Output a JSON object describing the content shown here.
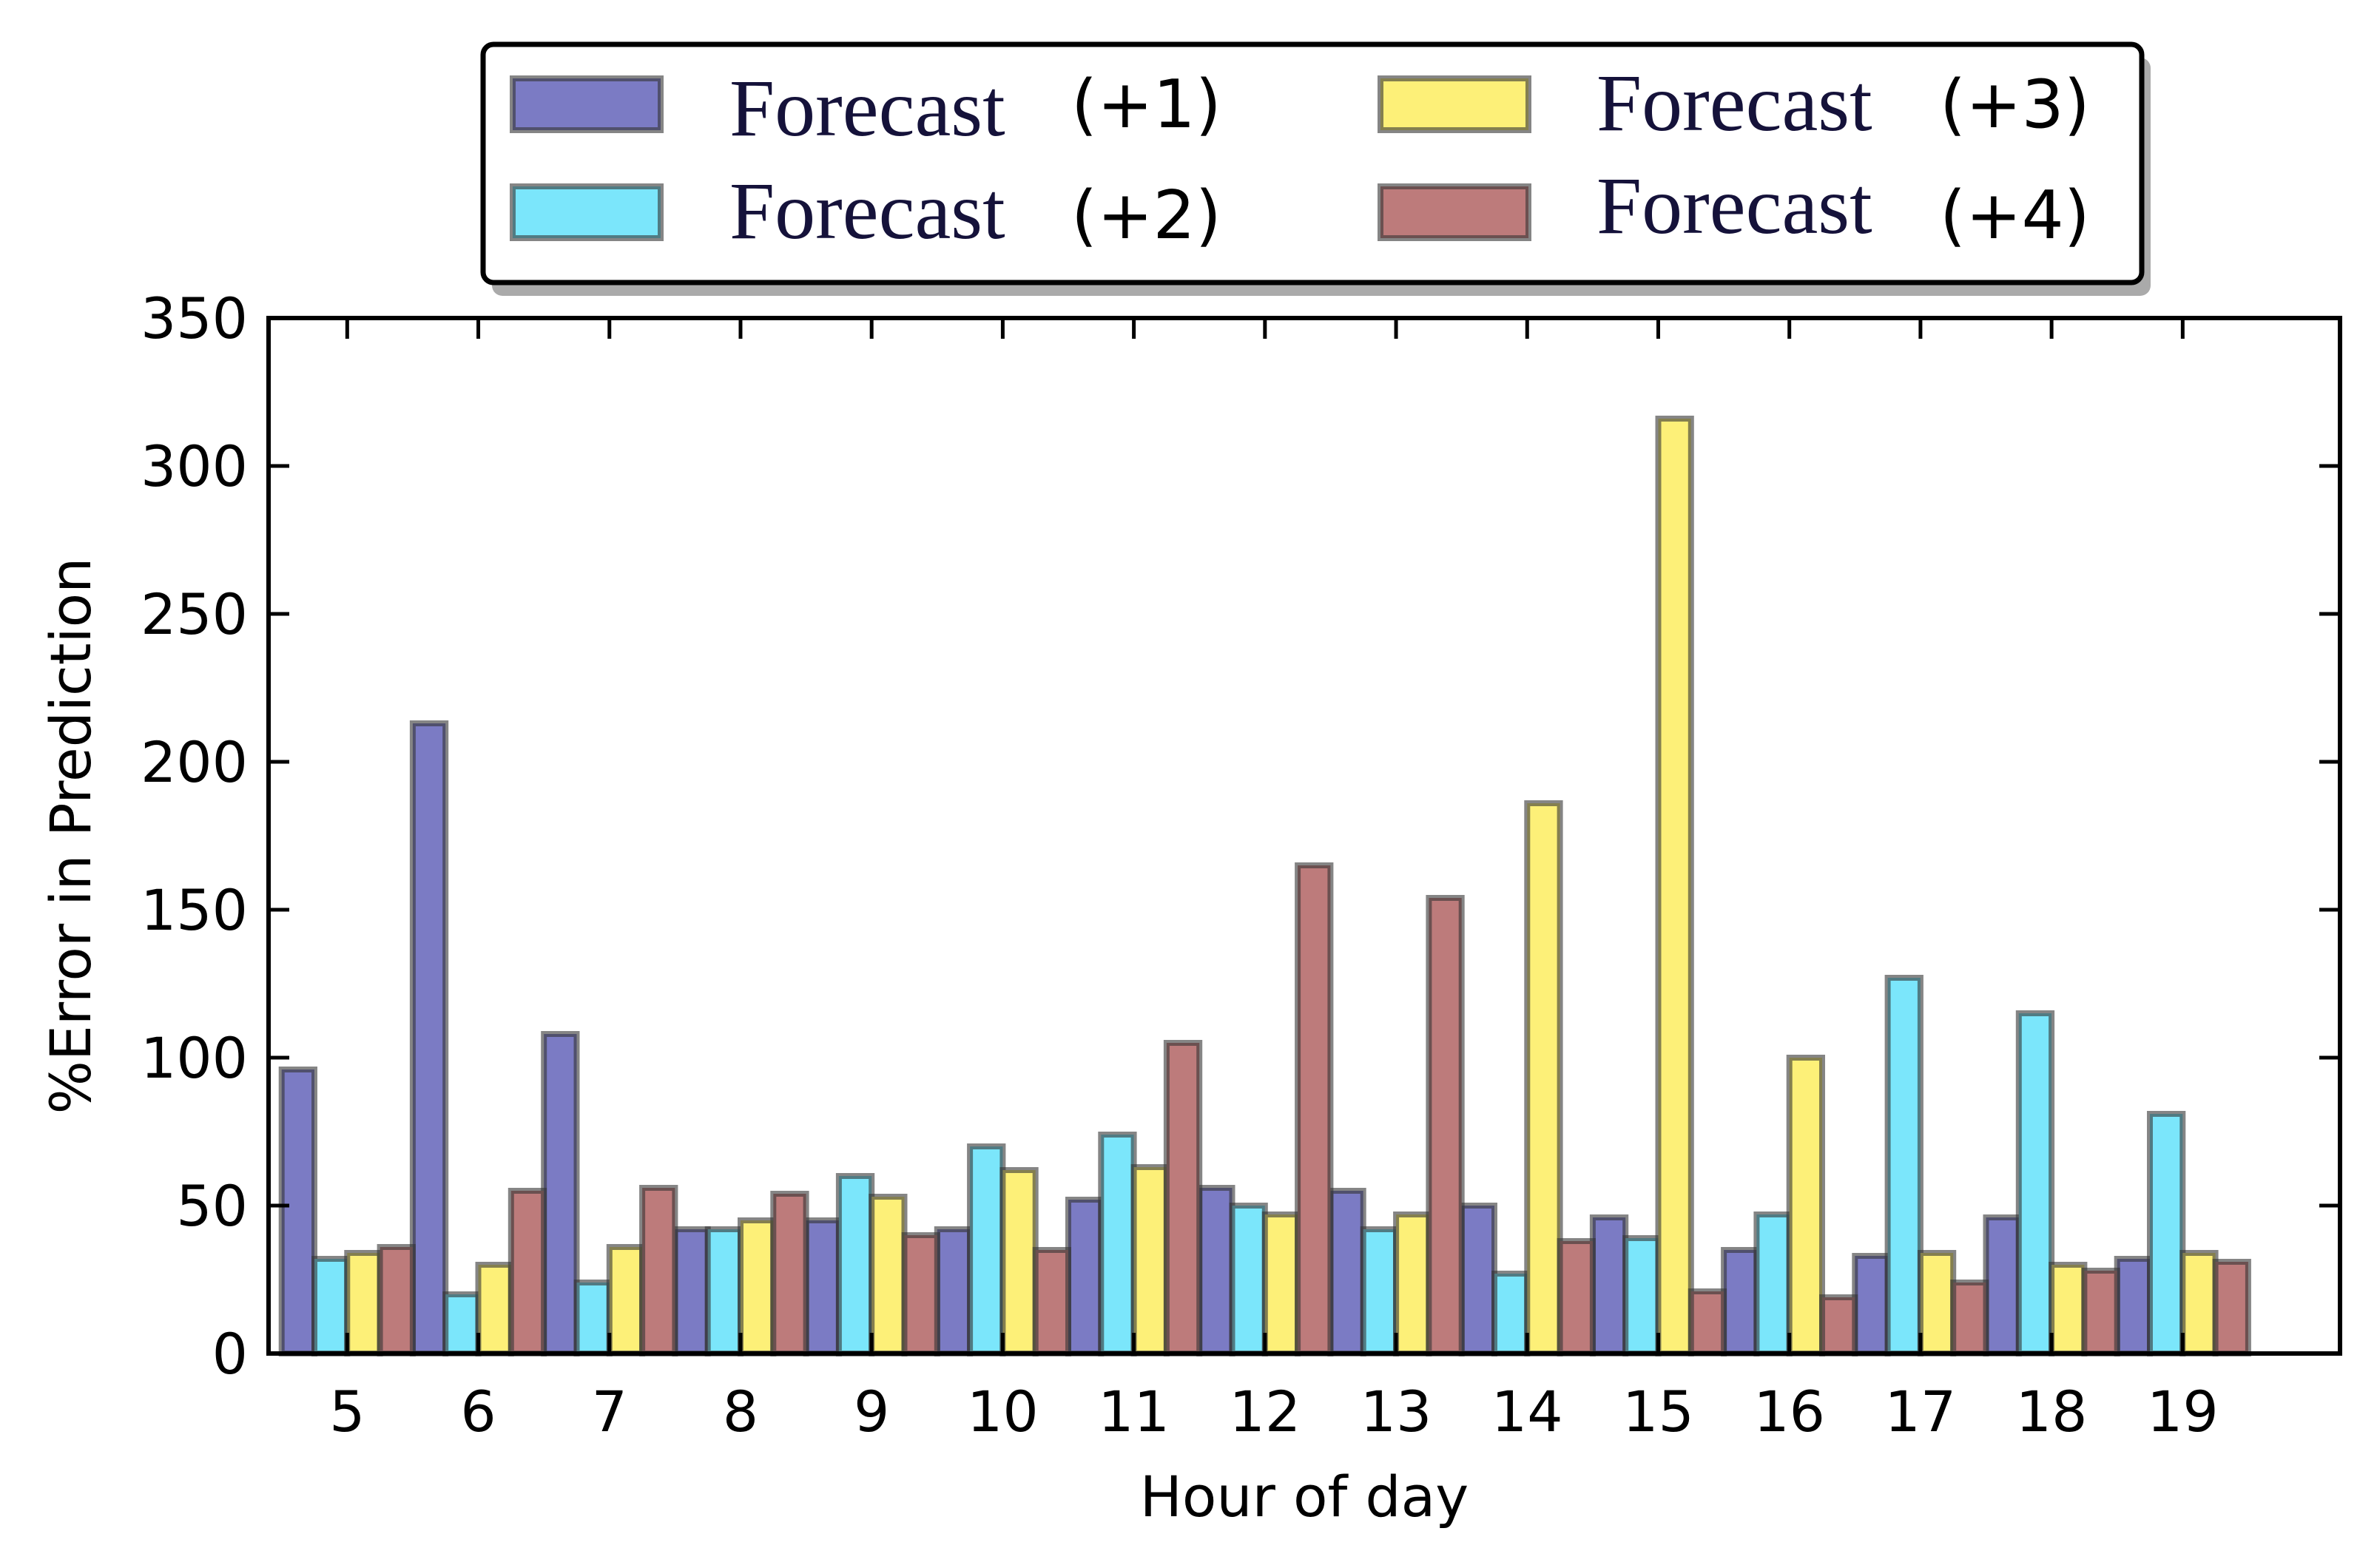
{
  "chart_data": {
    "type": "bar",
    "title": "",
    "xlabel": "Hour of day",
    "ylabel": "%Error in Prediction",
    "ylim": [
      0,
      350
    ],
    "yticks": [
      "0",
      "50",
      "100",
      "150",
      "200",
      "250",
      "300",
      "350"
    ],
    "categories": [
      "5",
      "6",
      "7",
      "8",
      "9",
      "10",
      "11",
      "12",
      "13",
      "14",
      "15",
      "16",
      "17",
      "18",
      "19"
    ],
    "legend_position": "top-center",
    "series": [
      {
        "name_word": "Forecast",
        "name_suffix": "(+1)",
        "color": "#7b7bc4",
        "values": [
          96,
          213,
          108,
          42,
          45,
          42,
          52,
          56,
          55,
          50,
          46,
          35,
          33,
          46,
          32
        ]
      },
      {
        "name_word": "Forecast",
        "name_suffix": "(+2)",
        "color": "#7be6fb",
        "values": [
          32,
          20,
          24,
          42,
          60,
          70,
          74,
          50,
          42,
          27,
          39,
          47,
          127,
          115,
          81
        ]
      },
      {
        "name_word": "Forecast",
        "name_suffix": "(+3)",
        "color": "#fdf078",
        "values": [
          34,
          30,
          36,
          45,
          53,
          62,
          63,
          47,
          47,
          186,
          316,
          100,
          34,
          30,
          34
        ]
      },
      {
        "name_word": "Forecast",
        "name_suffix": "(+4)",
        "color": "#bd7b7b",
        "values": [
          36,
          55,
          56,
          54,
          40,
          35,
          105,
          165,
          154,
          38,
          21,
          19,
          24,
          28,
          31
        ]
      }
    ]
  }
}
